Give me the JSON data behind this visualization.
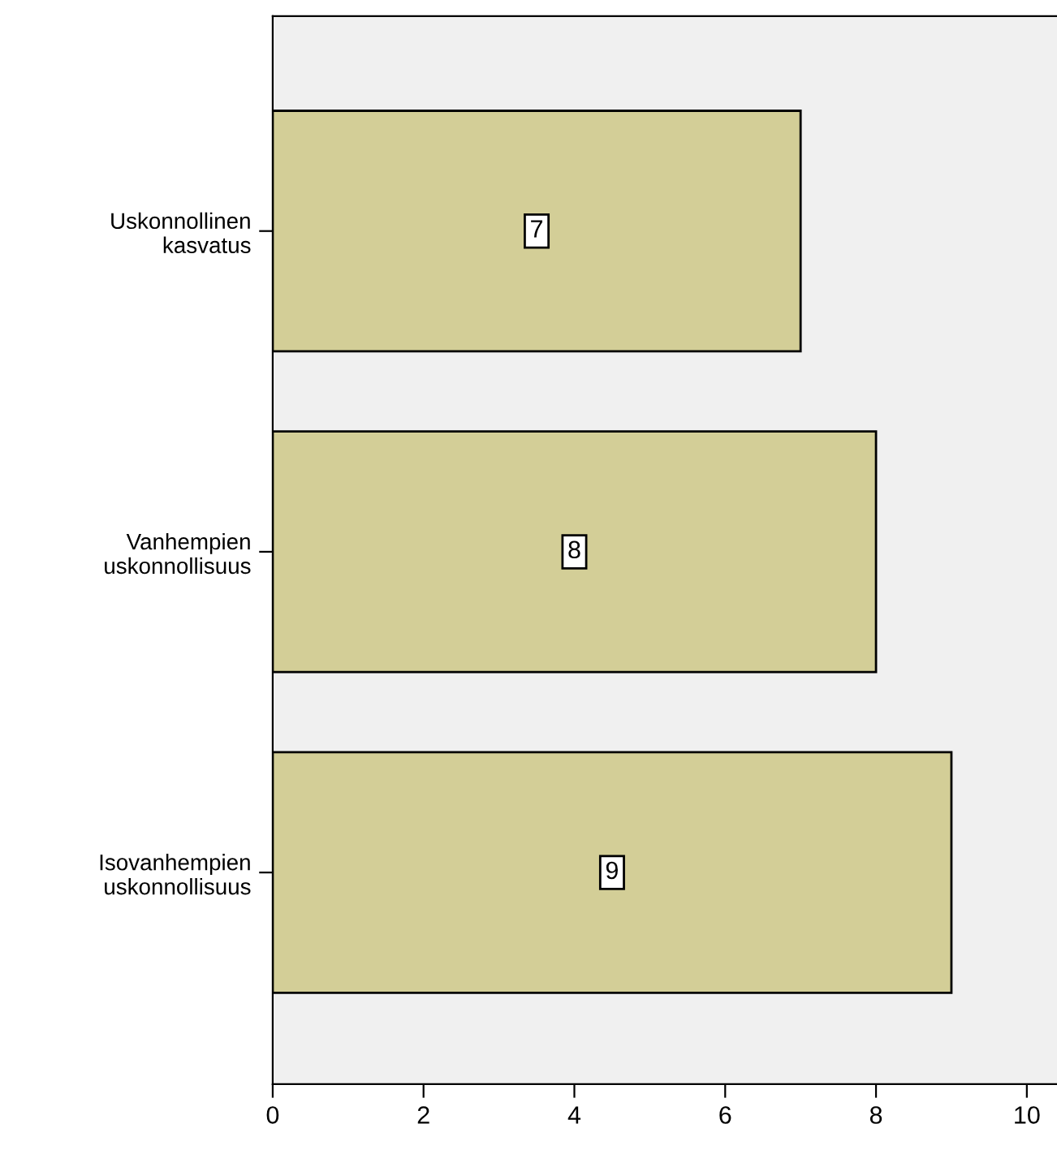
{
  "chart_data": {
    "type": "bar",
    "orientation": "horizontal",
    "categories": [
      "Uskonnollinen\nkasvatus",
      "Vanhempien\nuskonnollisuus",
      "Isovanhempien\nuskonnollisuus"
    ],
    "values": [
      7,
      8,
      9
    ],
    "color": "#d3ce97",
    "data_labels": true,
    "xlim": [
      0,
      10.4
    ],
    "xticks": [
      0,
      2,
      4,
      6,
      8,
      10
    ],
    "grid": false
  }
}
